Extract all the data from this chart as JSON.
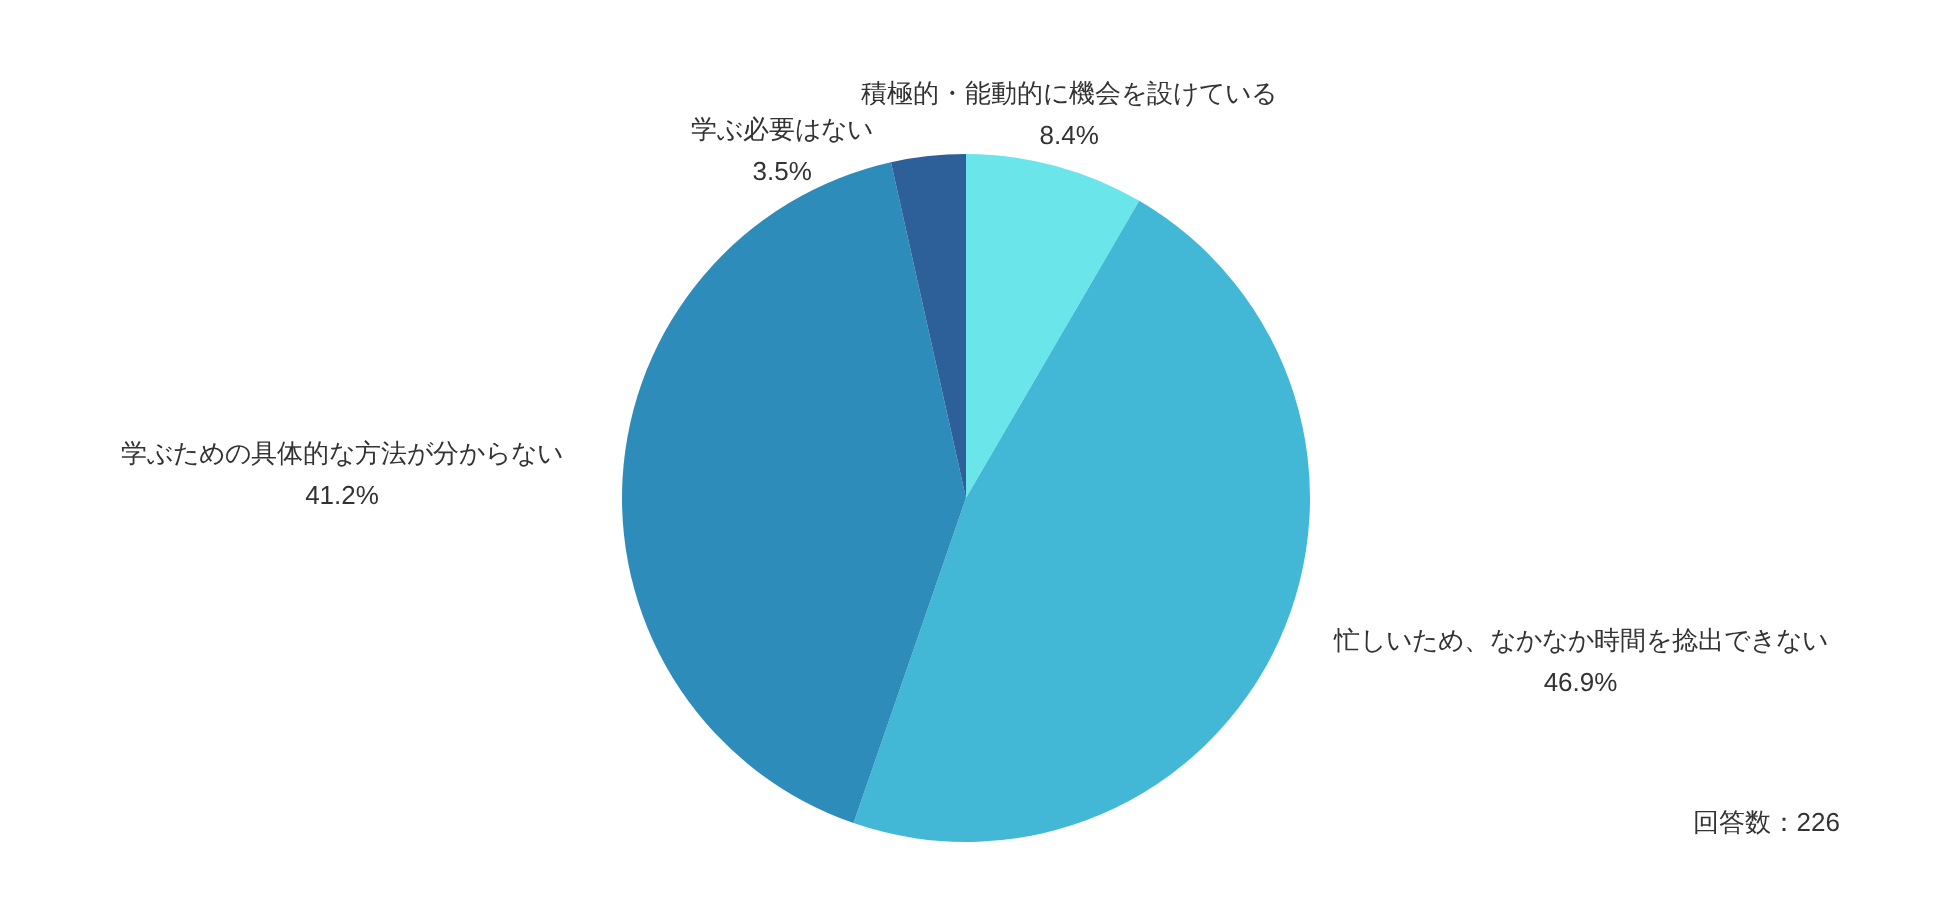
{
  "chart_data": {
    "type": "pie",
    "categories": [
      "積極的・能動的に機会を設けている",
      "忙しいため、なかなか時間を捻出できない",
      "学ぶための具体的な方法が分からない",
      "学ぶ必要はない"
    ],
    "values": [
      8.4,
      46.9,
      41.2,
      3.5
    ],
    "value_labels": [
      "8.4%",
      "46.9%",
      "41.2%",
      "3.5%"
    ],
    "colors": [
      "#6ae5e9",
      "#42b7d6",
      "#2e8cba",
      "#2d5f98"
    ],
    "legend": false,
    "annotations": [
      "回答数：226"
    ]
  }
}
